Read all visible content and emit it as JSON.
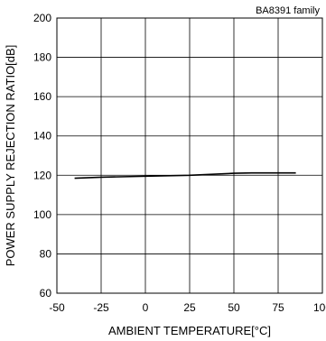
{
  "chart_data": {
    "type": "line",
    "annotation": "BA8391 family",
    "xlabel": "AMBIENT TEMPERATURE[°C]",
    "ylabel": "POWER SUPPLY REJECTION RATIO[dB]",
    "xlim": [
      -50,
      100
    ],
    "ylim": [
      60,
      200
    ],
    "xticks": [
      -50,
      -25,
      0,
      25,
      50,
      75,
      100
    ],
    "yticks": [
      60,
      80,
      100,
      120,
      140,
      160,
      180,
      200
    ],
    "xtick_labels": [
      "-50",
      "-25",
      "0",
      "25",
      "50",
      "75",
      "100"
    ],
    "ytick_labels": [
      "60",
      "80",
      "100",
      "120",
      "140",
      "160",
      "180",
      "200"
    ],
    "grid": true,
    "series": [
      {
        "x": [
          -40,
          -25,
          0,
          25,
          50,
          60,
          75,
          85
        ],
        "y": [
          118.5,
          119,
          119.5,
          120,
          121,
          121.2,
          121.2,
          121.2
        ],
        "color": "#000000"
      }
    ]
  }
}
